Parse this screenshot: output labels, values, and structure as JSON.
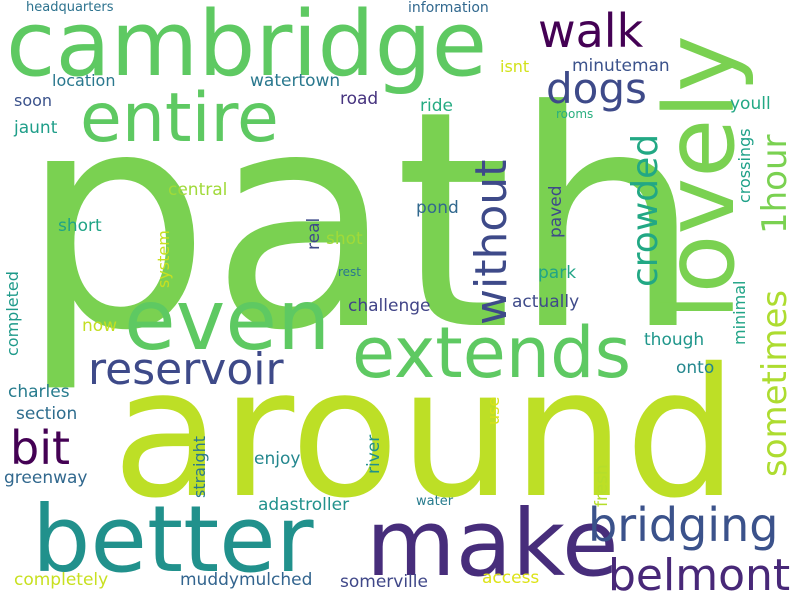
{
  "words": [
    {
      "text": "path",
      "color": "#7ad151"
    },
    {
      "text": "around",
      "color": "#bddf26"
    },
    {
      "text": "cambridge",
      "color": "#5ec962"
    },
    {
      "text": "lovely",
      "color": "#7ad151"
    },
    {
      "text": "make",
      "color": "#472d7b"
    },
    {
      "text": "better",
      "color": "#21918c"
    },
    {
      "text": "even",
      "color": "#5ec962"
    },
    {
      "text": "extends",
      "color": "#5ec962"
    },
    {
      "text": "entire",
      "color": "#5ec962"
    },
    {
      "text": "bridging",
      "color": "#3b528b"
    },
    {
      "text": "belmont",
      "color": "#482878"
    },
    {
      "text": "reservoir",
      "color": "#3e4a89"
    },
    {
      "text": "walk",
      "color": "#440154"
    },
    {
      "text": "dogs",
      "color": "#3e4a89"
    },
    {
      "text": "without",
      "color": "#3e4a89"
    },
    {
      "text": "crowded",
      "color": "#22a884"
    },
    {
      "text": "sometimes",
      "color": "#addc30"
    },
    {
      "text": "1hour",
      "color": "#7ad151"
    },
    {
      "text": "bit",
      "color": "#440154"
    },
    {
      "text": "headquarters",
      "color": "#2c728e"
    },
    {
      "text": "information",
      "color": "#31688e"
    },
    {
      "text": "isnt",
      "color": "#d2e21b"
    },
    {
      "text": "minuteman",
      "color": "#3b528b"
    },
    {
      "text": "youll",
      "color": "#22a884"
    },
    {
      "text": "location",
      "color": "#2a788e"
    },
    {
      "text": "watertown",
      "color": "#2a788e"
    },
    {
      "text": "road",
      "color": "#46337f"
    },
    {
      "text": "soon",
      "color": "#3b528b"
    },
    {
      "text": "ride",
      "color": "#25ab82"
    },
    {
      "text": "rooms",
      "color": "#29af7f"
    },
    {
      "text": "jaunt",
      "color": "#1f9e89"
    },
    {
      "text": "crossings",
      "color": "#1fa188"
    },
    {
      "text": "central",
      "color": "#a0da39"
    },
    {
      "text": "short",
      "color": "#20a486"
    },
    {
      "text": "system",
      "color": "#c8e020"
    },
    {
      "text": "real",
      "color": "#3e4a89"
    },
    {
      "text": "shot",
      "color": "#a0da39"
    },
    {
      "text": "pond",
      "color": "#31688e"
    },
    {
      "text": "paved",
      "color": "#3e4a89"
    },
    {
      "text": "completed",
      "color": "#1f9a8a"
    },
    {
      "text": "rest",
      "color": "#2a788e"
    },
    {
      "text": "park",
      "color": "#20a486"
    },
    {
      "text": "challenge",
      "color": "#414487"
    },
    {
      "text": "actually",
      "color": "#3e4a89"
    },
    {
      "text": "minimal",
      "color": "#20a486"
    },
    {
      "text": "now",
      "color": "#c2df23"
    },
    {
      "text": "though",
      "color": "#1f968b"
    },
    {
      "text": "onto",
      "color": "#24878e"
    },
    {
      "text": "charles",
      "color": "#287c8e"
    },
    {
      "text": "section",
      "color": "#2e6d8e"
    },
    {
      "text": "use",
      "color": "#d8e219"
    },
    {
      "text": "straight",
      "color": "#2a788e"
    },
    {
      "text": "river",
      "color": "#21918c"
    },
    {
      "text": "enjoy",
      "color": "#24878e"
    },
    {
      "text": "greenway",
      "color": "#31688e"
    },
    {
      "text": "fresh",
      "color": "#b5de2b"
    },
    {
      "text": "adastroller",
      "color": "#21918c"
    },
    {
      "text": "water",
      "color": "#287c8e"
    },
    {
      "text": "completely",
      "color": "#c8e020"
    },
    {
      "text": "muddymulched",
      "color": "#32648e"
    },
    {
      "text": "somerville",
      "color": "#3f4788"
    },
    {
      "text": "access",
      "color": "#dde318"
    }
  ]
}
